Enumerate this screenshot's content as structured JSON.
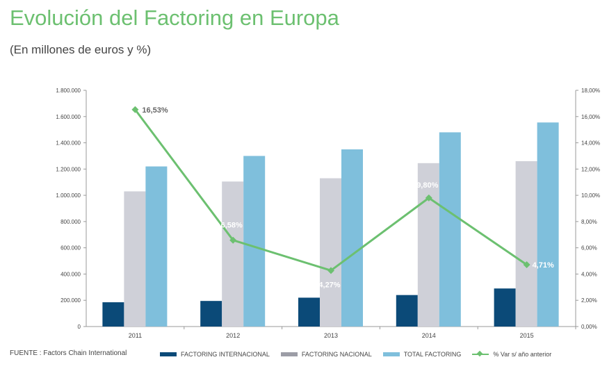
{
  "title": "Evolución del Factoring en Europa",
  "subtitle": "(En millones de euros y %)",
  "source": "FUENTE : Factors Chain International",
  "colors": {
    "title": "#6cc070",
    "internacional": "#0b4a78",
    "nacional": "#cfd0d8",
    "total": "#7fbfdc",
    "line": "#6cc070",
    "axis": "#999999",
    "text": "#444444"
  },
  "chart_data": {
    "type": "bar",
    "categories": [
      "2011",
      "2012",
      "2013",
      "2014",
      "2015"
    ],
    "ylim": [
      0,
      1800000
    ],
    "y2lim": [
      0,
      18
    ],
    "y_ticks": [
      "0",
      "200.000",
      "400.000",
      "600.000",
      "800.000",
      "1.000.000",
      "1.200.000",
      "1.400.000",
      "1.600.000",
      "1.800.000"
    ],
    "y2_ticks": [
      "0,00%",
      "2,00%",
      "4,00%",
      "6,00%",
      "8,00%",
      "10,00%",
      "12,00%",
      "14,00%",
      "16,00%",
      "18,00%"
    ],
    "grid": false,
    "legend_position": "bottom",
    "series": [
      {
        "name": "FACTORING INTERNACIONAL",
        "type": "bar",
        "values": [
          185000,
          195000,
          220000,
          240000,
          290000
        ]
      },
      {
        "name": "FACTORING NACIONAL",
        "type": "bar",
        "values": [
          1030000,
          1105000,
          1130000,
          1245000,
          1260000
        ]
      },
      {
        "name": "TOTAL FACTORING",
        "type": "bar",
        "values": [
          1220000,
          1300000,
          1350000,
          1480000,
          1555000
        ]
      },
      {
        "name": "% Var s/ año anterior",
        "type": "line",
        "axis": "right",
        "values": [
          16.53,
          6.58,
          4.27,
          9.8,
          4.71
        ],
        "labels": [
          "16,53%",
          "6,58%",
          "4,27%",
          "9,80%",
          "4,71%"
        ]
      }
    ]
  }
}
